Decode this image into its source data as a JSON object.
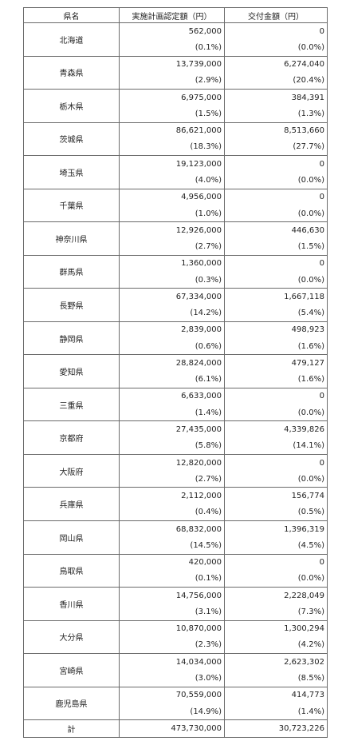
{
  "table": {
    "headers": [
      "県名",
      "実施計画認定額（円）",
      "交付金額（円）"
    ],
    "rows": [
      {
        "pref": "北海道",
        "approved": "562,000",
        "approved_pct": "(0.1%)",
        "granted": "0",
        "granted_pct": "(0.0%)"
      },
      {
        "pref": "青森県",
        "approved": "13,739,000",
        "approved_pct": "(2.9%)",
        "granted": "6,274,040",
        "granted_pct": "(20.4%)"
      },
      {
        "pref": "栃木県",
        "approved": "6,975,000",
        "approved_pct": "(1.5%)",
        "granted": "384,391",
        "granted_pct": "(1.3%)"
      },
      {
        "pref": "茨城県",
        "approved": "86,621,000",
        "approved_pct": "(18.3%)",
        "granted": "8,513,660",
        "granted_pct": "(27.7%)"
      },
      {
        "pref": "埼玉県",
        "approved": "19,123,000",
        "approved_pct": "(4.0%)",
        "granted": "0",
        "granted_pct": "(0.0%)"
      },
      {
        "pref": "千葉県",
        "approved": "4,956,000",
        "approved_pct": "(1.0%)",
        "granted": "0",
        "granted_pct": "(0.0%)"
      },
      {
        "pref": "神奈川県",
        "approved": "12,926,000",
        "approved_pct": "(2.7%)",
        "granted": "446,630",
        "granted_pct": "(1.5%)"
      },
      {
        "pref": "群馬県",
        "approved": "1,360,000",
        "approved_pct": "(0.3%)",
        "granted": "0",
        "granted_pct": "(0.0%)"
      },
      {
        "pref": "長野県",
        "approved": "67,334,000",
        "approved_pct": "(14.2%)",
        "granted": "1,667,118",
        "granted_pct": "(5.4%)"
      },
      {
        "pref": "静岡県",
        "approved": "2,839,000",
        "approved_pct": "(0.6%)",
        "granted": "498,923",
        "granted_pct": "(1.6%)"
      },
      {
        "pref": "愛知県",
        "approved": "28,824,000",
        "approved_pct": "(6.1%)",
        "granted": "479,127",
        "granted_pct": "(1.6%)"
      },
      {
        "pref": "三重県",
        "approved": "6,633,000",
        "approved_pct": "(1.4%)",
        "granted": "0",
        "granted_pct": "(0.0%)"
      },
      {
        "pref": "京都府",
        "approved": "27,435,000",
        "approved_pct": "(5.8%)",
        "granted": "4,339,826",
        "granted_pct": "(14.1%)"
      },
      {
        "pref": "大阪府",
        "approved": "12,820,000",
        "approved_pct": "(2.7%)",
        "granted": "0",
        "granted_pct": "(0.0%)"
      },
      {
        "pref": "兵庫県",
        "approved": "2,112,000",
        "approved_pct": "(0.4%)",
        "granted": "156,774",
        "granted_pct": "(0.5%)"
      },
      {
        "pref": "岡山県",
        "approved": "68,832,000",
        "approved_pct": "(14.5%)",
        "granted": "1,396,319",
        "granted_pct": "(4.5%)"
      },
      {
        "pref": "鳥取県",
        "approved": "420,000",
        "approved_pct": "(0.1%)",
        "granted": "0",
        "granted_pct": "(0.0%)"
      },
      {
        "pref": "香川県",
        "approved": "14,756,000",
        "approved_pct": "(3.1%)",
        "granted": "2,228,049",
        "granted_pct": "(7.3%)"
      },
      {
        "pref": "大分県",
        "approved": "10,870,000",
        "approved_pct": "(2.3%)",
        "granted": "1,300,294",
        "granted_pct": "(4.2%)"
      },
      {
        "pref": "宮崎県",
        "approved": "14,034,000",
        "approved_pct": "(3.0%)",
        "granted": "2,623,302",
        "granted_pct": "(8.5%)"
      },
      {
        "pref": "鹿児島県",
        "approved": "70,559,000",
        "approved_pct": "(14.9%)",
        "granted": "414,773",
        "granted_pct": "(1.4%)"
      }
    ],
    "total": {
      "label": "計",
      "approved": "473,730,000",
      "granted": "30,723,226"
    }
  }
}
